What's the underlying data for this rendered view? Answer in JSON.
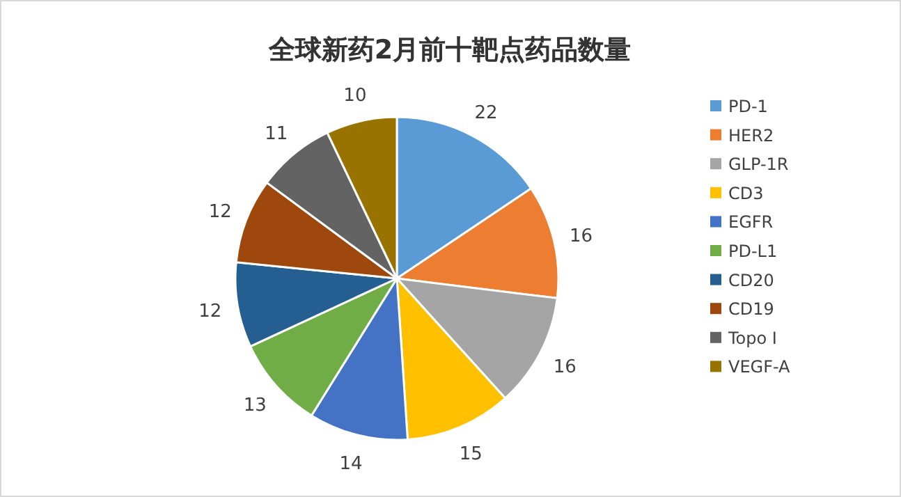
{
  "chart_data": {
    "type": "pie",
    "title": "全球新药2月前十靶点药品数量",
    "categories": [
      "PD-1",
      "HER2",
      "GLP-1R",
      "CD3",
      "EGFR",
      "PD-L1",
      "CD20",
      "CD19",
      "Topo I",
      "VEGF-A"
    ],
    "values": [
      22,
      16,
      16,
      15,
      14,
      13,
      12,
      12,
      11,
      10
    ],
    "colors": [
      "#5b9bd5",
      "#ed7d31",
      "#a5a5a5",
      "#ffc000",
      "#4472c4",
      "#70ad47",
      "#255e91",
      "#9e480e",
      "#636363",
      "#997300"
    ],
    "data_labels": true,
    "legend": "right"
  }
}
